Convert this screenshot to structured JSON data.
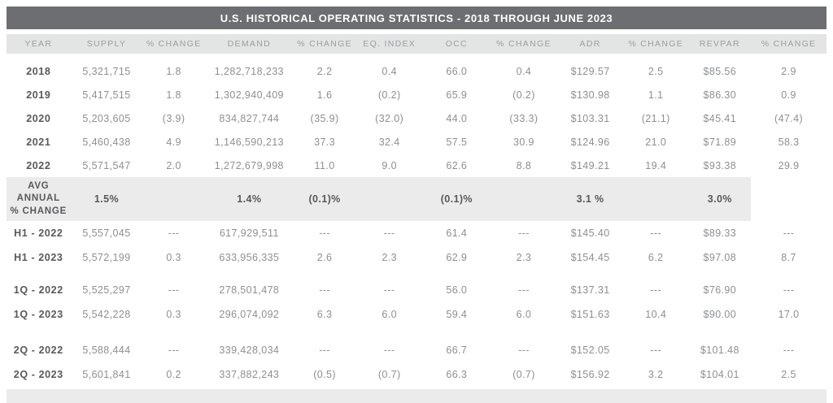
{
  "title": "U.S. HISTORICAL OPERATING STATISTICS - 2018 THROUGH JUNE 2023",
  "colors": {
    "title_bar_bg": "#6d6e71",
    "title_text": "#ffffff",
    "header_bg": "#e3e4e4",
    "header_text": "#9b9da0",
    "row_label": "#58595b",
    "cell_text": "#8d8f92",
    "avg_row_bg": "#ebebec",
    "footer_bg": "#ebebec"
  },
  "table": {
    "columns": [
      "YEAR",
      "SUPPLY",
      "% CHANGE",
      "DEMAND",
      "% CHANGE",
      "EQ. INDEX",
      "OCC",
      "% CHANGE",
      "ADR",
      "% CHANGE",
      "REVPAR",
      "% CHANGE"
    ],
    "column_widths_pct": [
      7.8,
      8.8,
      7.6,
      10.8,
      7.6,
      8.2,
      8.2,
      8.2,
      8.0,
      8.0,
      7.6,
      9.2
    ],
    "annual_rows": [
      {
        "label": "2018",
        "cells": [
          "5,321,715",
          "1.8",
          "1,282,718,233",
          "2.2",
          "0.4",
          "66.0",
          "0.4",
          "$129.57",
          "2.5",
          "$85.56",
          "2.9"
        ]
      },
      {
        "label": "2019",
        "cells": [
          "5,417,515",
          "1.8",
          "1,302,940,409",
          "1.6",
          "(0.2)",
          "65.9",
          "(0.2)",
          "$130.98",
          "1.1",
          "$86.30",
          "0.9"
        ]
      },
      {
        "label": "2020",
        "cells": [
          "5,203,605",
          "(3.9)",
          "834,827,744",
          "(35.9)",
          "(32.0)",
          "44.0",
          "(33.3)",
          "$103.31",
          "(21.1)",
          "$45.41",
          "(47.4)"
        ]
      },
      {
        "label": "2021",
        "cells": [
          "5,460,438",
          "4.9",
          "1,146,590,213",
          "37.3",
          "32.4",
          "57.5",
          "30.9",
          "$124.96",
          "21.0",
          "$71.89",
          "58.3"
        ]
      },
      {
        "label": "2022",
        "cells": [
          "5,571,547",
          "2.0",
          "1,272,679,998",
          "11.0",
          "9.0",
          "62.6",
          "8.8",
          "$149.21",
          "19.4",
          "$93.38",
          "29.9"
        ]
      }
    ],
    "avg_row": {
      "label_lines": [
        "AVG",
        "ANNUAL",
        "% CHANGE"
      ],
      "cells": [
        "1.5%",
        "",
        "1.4%",
        "(0.1)%",
        "",
        "(0.1)%",
        "",
        "3.1 %",
        "",
        "3.0%"
      ]
    },
    "period_groups": [
      {
        "rows": [
          {
            "label": "H1 - 2022",
            "cells": [
              "5,557,045",
              "---",
              "617,929,511",
              "---",
              "---",
              "61.4",
              "---",
              "$145.40",
              "---",
              "$89.33",
              "---"
            ]
          },
          {
            "label": "H1 - 2023",
            "cells": [
              "5,572,199",
              "0.3",
              "633,956,335",
              "2.6",
              "2.3",
              "62.9",
              "2.3",
              "$154.45",
              "6.2",
              "$97.08",
              "8.7"
            ]
          }
        ]
      },
      {
        "rows": [
          {
            "label": "1Q - 2022",
            "cells": [
              "5,525,297",
              "---",
              "278,501,478",
              "---",
              "---",
              "56.0",
              "---",
              "$137.31",
              "---",
              "$76.90",
              "---"
            ]
          },
          {
            "label": "1Q - 2023",
            "cells": [
              "5,542,228",
              "0.3",
              "296,074,092",
              "6.3",
              "6.0",
              "59.4",
              "6.0",
              "$151.63",
              "10.4",
              "$90.00",
              "17.0"
            ]
          }
        ]
      },
      {
        "rows": [
          {
            "label": "2Q - 2022",
            "cells": [
              "5,588,444",
              "---",
              "339,428,034",
              "---",
              "---",
              "66.7",
              "---",
              "$152.05",
              "---",
              "$101.48",
              "---"
            ]
          },
          {
            "label": "2Q - 2023",
            "cells": [
              "5,601,841",
              "0.2",
              "337,882,243",
              "(0.5)",
              "(0.7)",
              "66.3",
              "(0.7)",
              "$156.92",
              "3.2",
              "$104.01",
              "2.5"
            ]
          }
        ]
      }
    ]
  }
}
